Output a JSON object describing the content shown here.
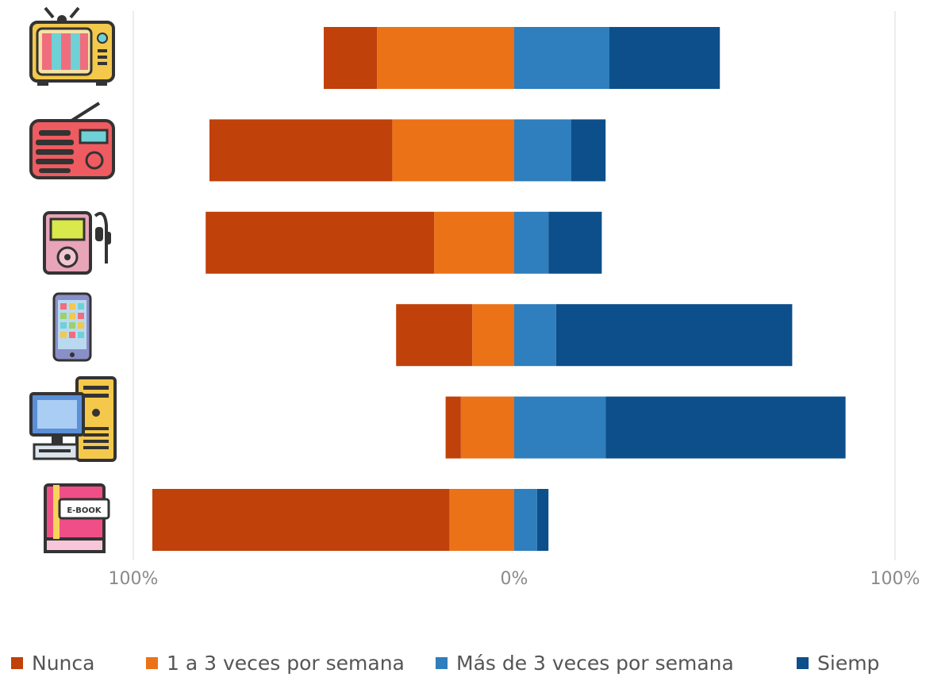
{
  "chart_data": {
    "type": "bar",
    "orientation": "horizontal",
    "stacking": "diverging",
    "categories": [
      "tv-icon",
      "radio-icon",
      "mp3-player-icon",
      "smartphone-icon",
      "desktop-computer-icon",
      "ebook-icon"
    ],
    "series": [
      {
        "name": "Nunca",
        "color": "#c0410a",
        "side": "negative",
        "values": [
          14,
          48,
          60,
          20,
          4,
          78
        ]
      },
      {
        "name": "1 a 3 veces por semana",
        "color": "#ec7217",
        "side": "negative",
        "values": [
          36,
          32,
          21,
          11,
          14,
          17
        ]
      },
      {
        "name": "Más de 3 veces por semana",
        "color": "#2f7ebd",
        "side": "positive",
        "values": [
          25,
          15,
          9,
          11,
          24,
          6
        ]
      },
      {
        "name": "Siempre",
        "color": "#0d4f8a",
        "side": "positive",
        "values": [
          29,
          9,
          14,
          62,
          63,
          3
        ]
      }
    ],
    "xlim": [
      -100,
      100
    ],
    "x_ticks": [
      "100%",
      "0%",
      "100%"
    ],
    "grid": "vertical lines at -100%, 0% and 100%",
    "legend_position": "bottom",
    "legend_labels": [
      "Nunca",
      "1 a 3 veces por semana",
      "Más de 3 veces por semana",
      "Siemp"
    ],
    "title": "",
    "xlabel": "",
    "ylabel": ""
  }
}
